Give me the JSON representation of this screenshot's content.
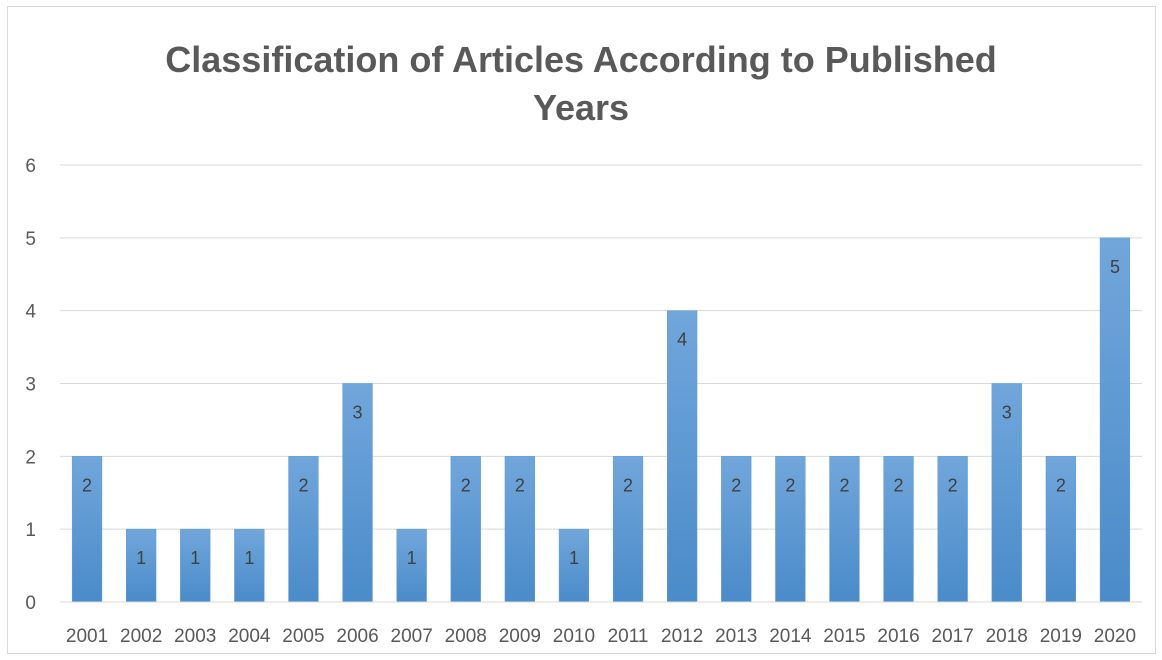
{
  "title_line1": "Classification of Articles According to Published",
  "title_line2": "Years",
  "chart_data": {
    "type": "bar",
    "title": "Classification of Articles According to Published Years",
    "categories": [
      "2001",
      "2002",
      "2003",
      "2004",
      "2005",
      "2006",
      "2007",
      "2008",
      "2009",
      "2010",
      "2011",
      "2012",
      "2013",
      "2014",
      "2015",
      "2016",
      "2017",
      "2018",
      "2019",
      "2020"
    ],
    "values": [
      2,
      1,
      1,
      1,
      2,
      3,
      1,
      2,
      2,
      1,
      2,
      4,
      2,
      2,
      2,
      2,
      2,
      3,
      2,
      5
    ],
    "ylim": [
      0,
      6
    ],
    "yticks": [
      0,
      1,
      2,
      3,
      4,
      5,
      6
    ],
    "grid": true,
    "data_labels": true,
    "bar_color": "#5b9bd5",
    "bar_color_light": "#71a6db",
    "bar_color_dark": "#4a8bc9"
  }
}
